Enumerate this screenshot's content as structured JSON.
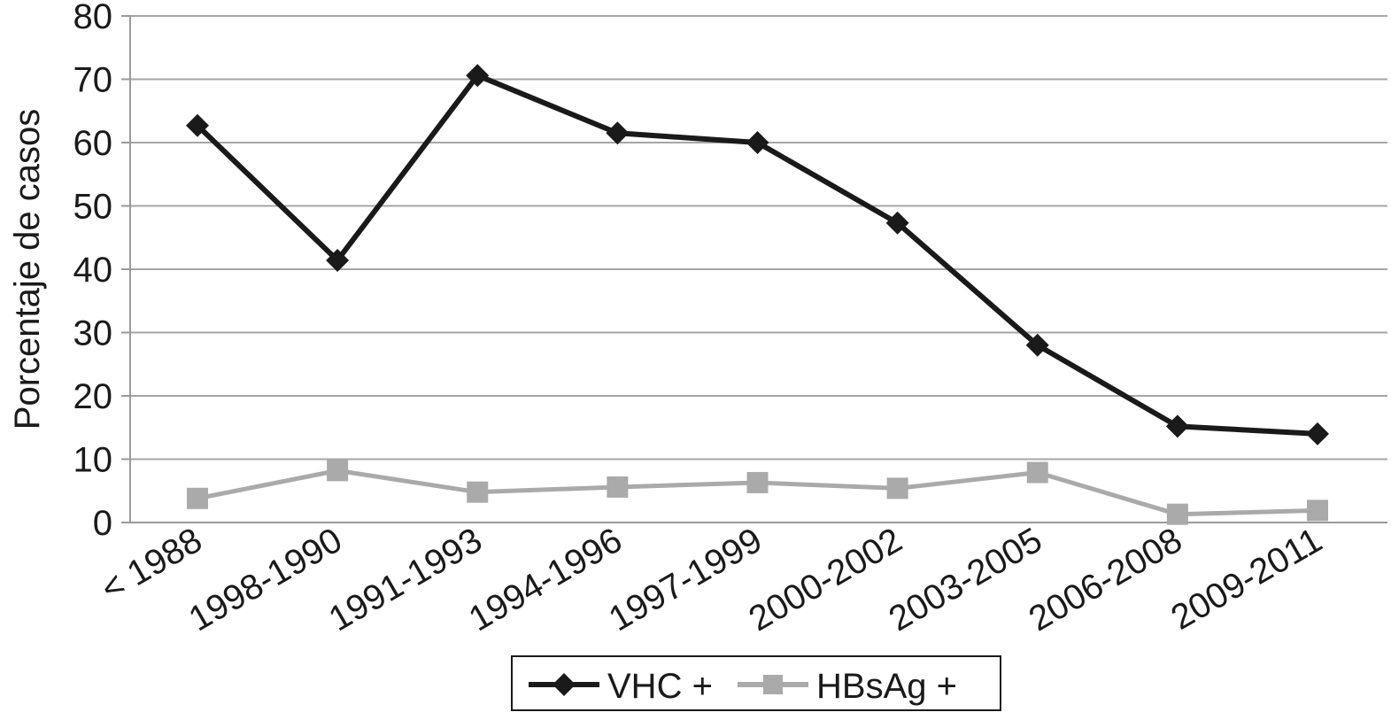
{
  "chart_data": {
    "type": "line",
    "title": "",
    "xlabel": "",
    "ylabel": "Porcentaje de casos",
    "categories": [
      "< 1988",
      "1998-1990",
      "1991-1993",
      "1994-1996",
      "1997-1999",
      "2000-2002",
      "2003-2005",
      "2006-2008",
      "2009-2011"
    ],
    "ylim": [
      0,
      80
    ],
    "yticks": [
      0,
      10,
      20,
      30,
      40,
      50,
      60,
      70,
      80
    ],
    "grid": true,
    "legend_position": "bottom",
    "series": [
      {
        "name": "VHC +",
        "marker": "diamond",
        "color": "#1a1a1a",
        "values": [
          62.7,
          41.4,
          70.6,
          61.5,
          60.0,
          47.3,
          28.0,
          15.2,
          14.0
        ]
      },
      {
        "name": "HBsAg +",
        "marker": "square",
        "color": "#aaaaaa",
        "values": [
          3.8,
          8.2,
          4.8,
          5.6,
          6.3,
          5.4,
          7.9,
          1.3,
          1.9
        ]
      }
    ]
  }
}
